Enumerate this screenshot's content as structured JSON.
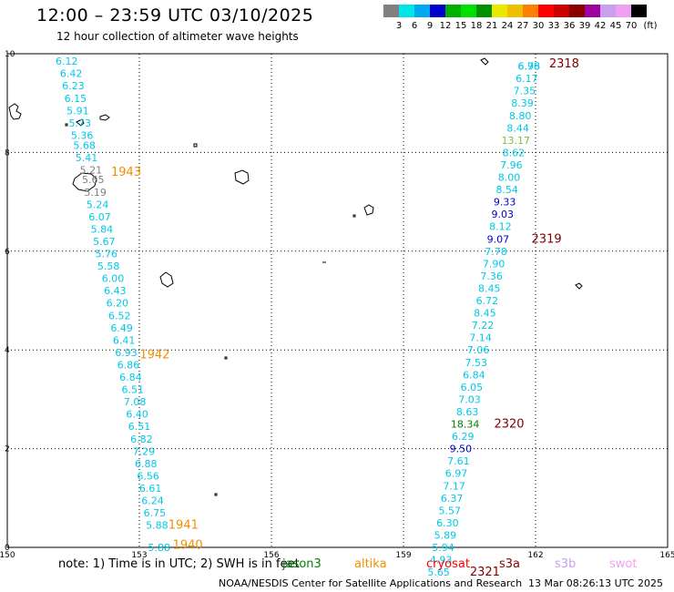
{
  "header": {
    "title": "12:00 – 23:59 UTC 03/10/2025",
    "subtitle": "12 hour collection of altimeter wave heights"
  },
  "legend": {
    "unit": "(ft)",
    "items": [
      {
        "label": "3",
        "color": "#808080"
      },
      {
        "label": "6",
        "color": "#00e5e5"
      },
      {
        "label": "9",
        "color": "#00a8f0"
      },
      {
        "label": "12",
        "color": "#0000cc"
      },
      {
        "label": "15",
        "color": "#00b000"
      },
      {
        "label": "18",
        "color": "#00e000"
      },
      {
        "label": "21",
        "color": "#009000"
      },
      {
        "label": "24",
        "color": "#e8e800"
      },
      {
        "label": "27",
        "color": "#f0c000"
      },
      {
        "label": "30",
        "color": "#ff8000"
      },
      {
        "label": "33",
        "color": "#ff0000"
      },
      {
        "label": "36",
        "color": "#cc0000"
      },
      {
        "label": "39",
        "color": "#880000"
      },
      {
        "label": "42",
        "color": "#a000a0"
      },
      {
        "label": "45",
        "color": "#c8a0f0"
      },
      {
        "label": "70",
        "color": "#f0a0f0"
      },
      {
        "label": "",
        "color": "#000000"
      }
    ]
  },
  "axes": {
    "lon_ticks": [
      "150",
      "153",
      "156",
      "159",
      "162",
      "165"
    ],
    "lat_ticks": [
      "10",
      "8",
      "6",
      "4",
      "2",
      "0"
    ],
    "lon_range": [
      150,
      165
    ],
    "lat_range": [
      0,
      10
    ]
  },
  "colors": {
    "cyan": "#00c8e8",
    "blue": "#0000c8",
    "grey": "#808080",
    "green": "#008000",
    "lightgreen": "#7ac040",
    "orange": "#f09000",
    "darkred": "#800000"
  },
  "tracks": [
    {
      "points": [
        {
          "lon": 151.35,
          "lat": 9.85,
          "v": "6.12"
        },
        {
          "lon": 151.45,
          "lat": 9.6,
          "v": "6.42"
        },
        {
          "lon": 151.5,
          "lat": 9.35,
          "v": "6.23"
        },
        {
          "lon": 151.55,
          "lat": 9.1,
          "v": "6.15"
        },
        {
          "lon": 151.6,
          "lat": 8.85,
          "v": "5.91"
        },
        {
          "lon": 151.65,
          "lat": 8.6,
          "v": "5.73"
        },
        {
          "lon": 151.7,
          "lat": 8.35,
          "v": "5.36"
        },
        {
          "lon": 151.75,
          "lat": 8.15,
          "v": "5.68"
        },
        {
          "lon": 151.8,
          "lat": 7.9,
          "v": "5.41"
        },
        {
          "lon": 151.9,
          "lat": 7.65,
          "v": "5.21",
          "c": "grey"
        },
        {
          "lon": 151.95,
          "lat": 7.45,
          "v": "5.65",
          "c": "grey"
        },
        {
          "lon": 152.0,
          "lat": 7.2,
          "v": "5.19",
          "c": "grey"
        },
        {
          "lon": 152.05,
          "lat": 6.95,
          "v": "5.24"
        },
        {
          "lon": 152.1,
          "lat": 6.7,
          "v": "6.07"
        },
        {
          "lon": 152.15,
          "lat": 6.45,
          "v": "5.84"
        },
        {
          "lon": 152.2,
          "lat": 6.2,
          "v": "5.67"
        },
        {
          "lon": 152.25,
          "lat": 5.95,
          "v": "5.76"
        },
        {
          "lon": 152.3,
          "lat": 5.7,
          "v": "5.58"
        },
        {
          "lon": 152.4,
          "lat": 5.45,
          "v": "6.00"
        },
        {
          "lon": 152.45,
          "lat": 5.2,
          "v": "6.43"
        },
        {
          "lon": 152.5,
          "lat": 4.95,
          "v": "6.20"
        },
        {
          "lon": 152.55,
          "lat": 4.7,
          "v": "6.52"
        },
        {
          "lon": 152.6,
          "lat": 4.45,
          "v": "6.49"
        },
        {
          "lon": 152.65,
          "lat": 4.2,
          "v": "6.41"
        },
        {
          "lon": 152.7,
          "lat": 3.95,
          "v": "6.93"
        },
        {
          "lon": 152.75,
          "lat": 3.7,
          "v": "6.86"
        },
        {
          "lon": 152.8,
          "lat": 3.45,
          "v": "6.84"
        },
        {
          "lon": 152.85,
          "lat": 3.2,
          "v": "6.51"
        },
        {
          "lon": 152.9,
          "lat": 2.95,
          "v": "7.08"
        },
        {
          "lon": 152.95,
          "lat": 2.7,
          "v": "6.40"
        },
        {
          "lon": 153.0,
          "lat": 2.45,
          "v": "6.51"
        },
        {
          "lon": 153.05,
          "lat": 2.2,
          "v": "6.82"
        },
        {
          "lon": 153.1,
          "lat": 1.95,
          "v": "7.29"
        },
        {
          "lon": 153.15,
          "lat": 1.7,
          "v": "6.88"
        },
        {
          "lon": 153.2,
          "lat": 1.45,
          "v": "6.56"
        },
        {
          "lon": 153.25,
          "lat": 1.2,
          "v": "6.61"
        },
        {
          "lon": 153.3,
          "lat": 0.95,
          "v": "6.24"
        },
        {
          "lon": 153.35,
          "lat": 0.7,
          "v": "6.75"
        },
        {
          "lon": 153.4,
          "lat": 0.45,
          "v": "5.88"
        },
        {
          "lon": 153.45,
          "lat": 0.0,
          "v": "5.88"
        }
      ],
      "passes": [
        {
          "lon": 152.7,
          "lat": 7.6,
          "label": "1943"
        },
        {
          "lon": 153.35,
          "lat": 3.9,
          "label": "1942"
        },
        {
          "lon": 154.0,
          "lat": 0.45,
          "label": "1941"
        },
        {
          "lon": 154.1,
          "lat": 0.05,
          "label": "1940"
        }
      ]
    },
    {
      "points": [
        {
          "lon": 161.85,
          "lat": 9.75,
          "v": "6.98"
        },
        {
          "lon": 161.85,
          "lat": 9.75,
          "v": "6.76"
        },
        {
          "lon": 161.8,
          "lat": 9.5,
          "v": "6.17"
        },
        {
          "lon": 161.75,
          "lat": 9.25,
          "v": "7.35"
        },
        {
          "lon": 161.7,
          "lat": 9.0,
          "v": "8.39"
        },
        {
          "lon": 161.65,
          "lat": 8.75,
          "v": "8.80"
        },
        {
          "lon": 161.6,
          "lat": 8.5,
          "v": "8.44"
        },
        {
          "lon": 161.55,
          "lat": 8.25,
          "v": "13.17",
          "c": "lightgreen"
        },
        {
          "lon": 161.5,
          "lat": 8.0,
          "v": "8.62"
        },
        {
          "lon": 161.45,
          "lat": 7.75,
          "v": "7.96"
        },
        {
          "lon": 161.4,
          "lat": 7.5,
          "v": "8.00"
        },
        {
          "lon": 161.35,
          "lat": 7.25,
          "v": "8.54"
        },
        {
          "lon": 161.3,
          "lat": 7.0,
          "v": "9.33",
          "c": "blue"
        },
        {
          "lon": 161.25,
          "lat": 6.75,
          "v": "9.03",
          "c": "blue"
        },
        {
          "lon": 161.2,
          "lat": 6.5,
          "v": "8.12"
        },
        {
          "lon": 161.15,
          "lat": 6.25,
          "v": "9.07",
          "c": "blue"
        },
        {
          "lon": 161.1,
          "lat": 6.0,
          "v": "7.78"
        },
        {
          "lon": 161.05,
          "lat": 5.75,
          "v": "7.90"
        },
        {
          "lon": 161.0,
          "lat": 5.5,
          "v": "7.36"
        },
        {
          "lon": 160.95,
          "lat": 5.25,
          "v": "8.45"
        },
        {
          "lon": 160.9,
          "lat": 5.0,
          "v": "6.72"
        },
        {
          "lon": 160.85,
          "lat": 4.75,
          "v": "8.45"
        },
        {
          "lon": 160.8,
          "lat": 4.5,
          "v": "7.22"
        },
        {
          "lon": 160.75,
          "lat": 4.25,
          "v": "7.14"
        },
        {
          "lon": 160.7,
          "lat": 4.0,
          "v": "7.06"
        },
        {
          "lon": 160.65,
          "lat": 3.75,
          "v": "7.53"
        },
        {
          "lon": 160.6,
          "lat": 3.5,
          "v": "6.84"
        },
        {
          "lon": 160.55,
          "lat": 3.25,
          "v": "6.05"
        },
        {
          "lon": 160.5,
          "lat": 3.0,
          "v": "7.03"
        },
        {
          "lon": 160.45,
          "lat": 2.75,
          "v": "8.63"
        },
        {
          "lon": 160.4,
          "lat": 2.5,
          "v": "18.34",
          "c": "green"
        },
        {
          "lon": 160.35,
          "lat": 2.25,
          "v": "6.29"
        },
        {
          "lon": 160.3,
          "lat": 2.0,
          "v": "9.50",
          "c": "blue"
        },
        {
          "lon": 160.25,
          "lat": 1.75,
          "v": "7.61"
        },
        {
          "lon": 160.2,
          "lat": 1.5,
          "v": "6.97"
        },
        {
          "lon": 160.15,
          "lat": 1.25,
          "v": "7.17"
        },
        {
          "lon": 160.1,
          "lat": 1.0,
          "v": "6.37"
        },
        {
          "lon": 160.05,
          "lat": 0.75,
          "v": "5.57"
        },
        {
          "lon": 160.0,
          "lat": 0.5,
          "v": "6.30"
        },
        {
          "lon": 159.95,
          "lat": 0.25,
          "v": "5.89"
        },
        {
          "lon": 159.9,
          "lat": 0.0,
          "v": "5.94"
        },
        {
          "lon": 159.85,
          "lat": -0.25,
          "v": "4.93"
        },
        {
          "lon": 159.8,
          "lat": -0.5,
          "v": "5.65"
        }
      ],
      "passes": [
        {
          "lon": 162.65,
          "lat": 9.8,
          "label": "2318"
        },
        {
          "lon": 162.25,
          "lat": 6.25,
          "label": "2319"
        },
        {
          "lon": 161.4,
          "lat": 2.5,
          "label": "2320"
        },
        {
          "lon": 160.85,
          "lat": -0.5,
          "label": "2321"
        }
      ]
    }
  ],
  "note": {
    "text": "note:  1) Time is in UTC; 2) SWH is in feet",
    "missions": [
      {
        "label": "jason3",
        "color": "#008000"
      },
      {
        "label": "altika",
        "color": "#f09000"
      },
      {
        "label": "cryosat",
        "color": "#ff0000"
      },
      {
        "label": "s3a",
        "color": "#800000"
      },
      {
        "label": "s3b",
        "color": "#c8a0f0"
      },
      {
        "label": "swot",
        "color": "#f0a0f0"
      }
    ]
  },
  "footer": {
    "credit": "NOAA/NESDIS Center for Satellite Applications and Research",
    "timestamp": "13 Mar 08:26:13 UTC 2025"
  }
}
